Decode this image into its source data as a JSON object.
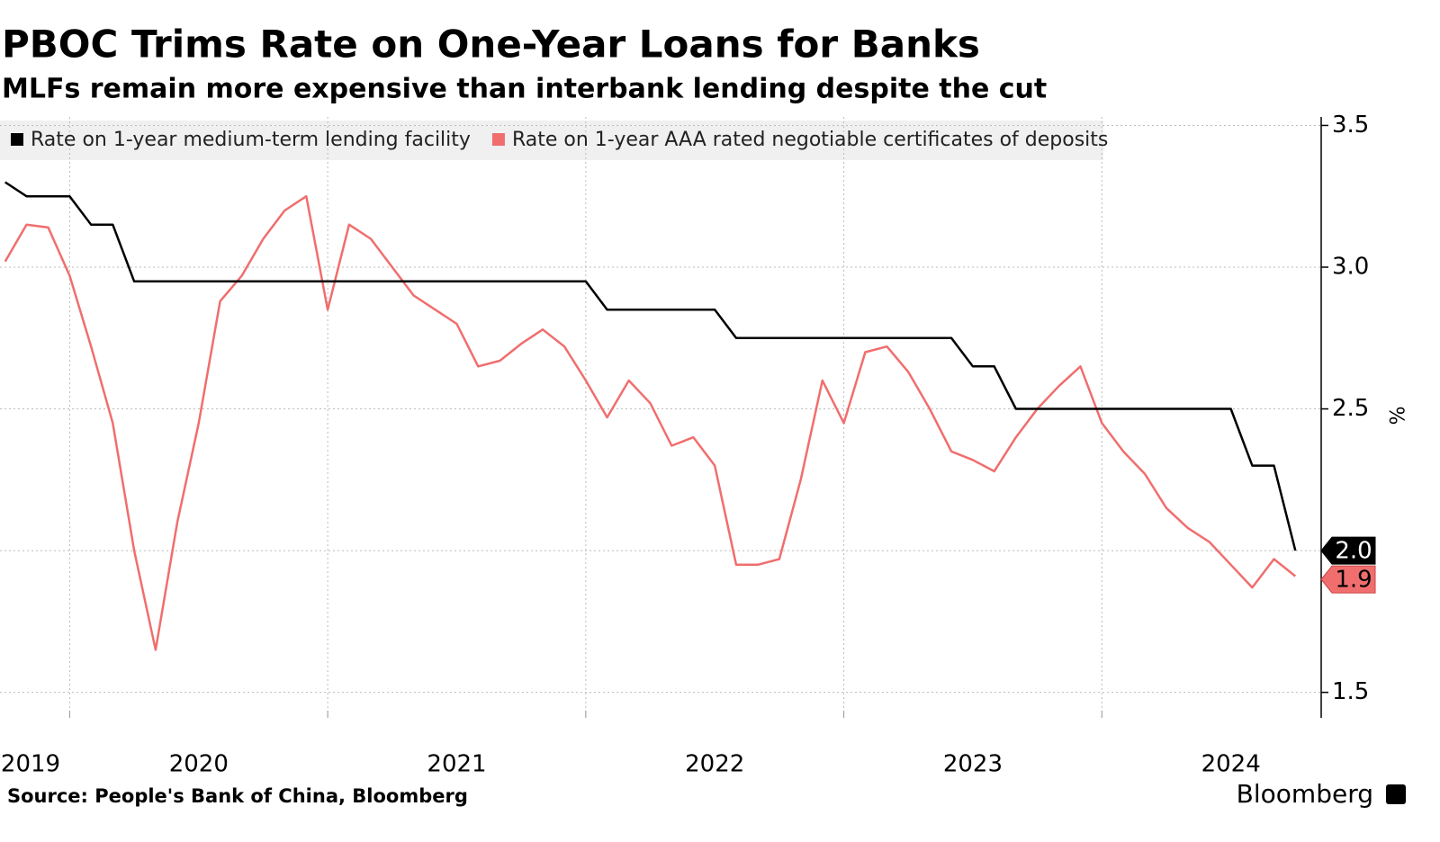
{
  "chart_data": {
    "type": "line",
    "title": "PBOC Trims Rate on One-Year Loans for Banks",
    "subtitle": "MLFs remain more expensive than interbank lending despite the cut",
    "y_label": "%",
    "source": "Source: People's Bank of China, Bloomberg",
    "brand": "Bloomberg",
    "x": [
      2019.75,
      2019.833,
      2019.917,
      2020,
      2020.083,
      2020.167,
      2020.25,
      2020.333,
      2020.417,
      2020.5,
      2020.583,
      2020.667,
      2020.75,
      2020.833,
      2020.917,
      2021,
      2021.083,
      2021.167,
      2021.25,
      2021.333,
      2021.417,
      2021.5,
      2021.583,
      2021.667,
      2021.75,
      2021.833,
      2021.917,
      2022,
      2022.083,
      2022.167,
      2022.25,
      2022.333,
      2022.417,
      2022.5,
      2022.583,
      2022.667,
      2022.75,
      2022.833,
      2022.917,
      2023,
      2023.083,
      2023.167,
      2023.25,
      2023.333,
      2023.417,
      2023.5,
      2023.583,
      2023.667,
      2023.75,
      2023.833,
      2023.917,
      2024,
      2024.083,
      2024.167,
      2024.25,
      2024.333,
      2024.417,
      2024.5,
      2024.583,
      2024.667,
      2024.75
    ],
    "series": [
      {
        "name": "Rate on 1-year medium-term lending facility",
        "color": "#000000",
        "values": [
          3.3,
          3.25,
          3.25,
          3.25,
          3.15,
          3.15,
          2.95,
          2.95,
          2.95,
          2.95,
          2.95,
          2.95,
          2.95,
          2.95,
          2.95,
          2.95,
          2.95,
          2.95,
          2.95,
          2.95,
          2.95,
          2.95,
          2.95,
          2.95,
          2.95,
          2.95,
          2.95,
          2.95,
          2.85,
          2.85,
          2.85,
          2.85,
          2.85,
          2.85,
          2.75,
          2.75,
          2.75,
          2.75,
          2.75,
          2.75,
          2.75,
          2.75,
          2.75,
          2.75,
          2.75,
          2.65,
          2.65,
          2.5,
          2.5,
          2.5,
          2.5,
          2.5,
          2.5,
          2.5,
          2.5,
          2.5,
          2.5,
          2.5,
          2.3,
          2.3,
          2.0
        ],
        "value_labels": [
          null,
          null,
          null,
          null,
          null,
          null,
          null,
          null,
          null,
          null,
          null,
          null,
          null,
          null,
          null,
          null,
          null,
          null,
          null,
          null,
          null,
          null,
          null,
          null,
          null,
          null,
          null,
          null,
          null,
          null,
          null,
          null,
          null,
          null,
          null,
          null,
          null,
          null,
          null,
          null,
          null,
          null,
          null,
          null,
          null,
          null,
          null,
          null,
          null,
          null,
          null,
          null,
          null,
          null,
          null,
          null,
          null,
          null,
          null,
          null,
          "2.0"
        ]
      },
      {
        "name": "Rate on 1-year AAA rated negotiable certificates of deposits",
        "color": "#f06e6e",
        "values": [
          3.02,
          3.15,
          3.14,
          2.97,
          2.72,
          2.45,
          2.0,
          1.65,
          2.1,
          2.45,
          2.88,
          2.97,
          3.1,
          3.2,
          3.25,
          2.85,
          3.15,
          3.1,
          3.0,
          2.9,
          2.85,
          2.8,
          2.65,
          2.67,
          2.73,
          2.78,
          2.72,
          2.6,
          2.47,
          2.6,
          2.52,
          2.37,
          2.4,
          2.3,
          1.95,
          1.95,
          1.97,
          2.25,
          2.6,
          2.45,
          2.7,
          2.72,
          2.63,
          2.5,
          2.35,
          2.32,
          2.28,
          2.4,
          2.5,
          2.58,
          2.65,
          2.45,
          2.35,
          2.27,
          2.15,
          2.08,
          2.03,
          1.95,
          1.87,
          1.97,
          1.91
        ],
        "value_labels": [
          null,
          null,
          null,
          null,
          null,
          null,
          null,
          null,
          null,
          null,
          null,
          null,
          null,
          null,
          null,
          null,
          null,
          null,
          null,
          null,
          null,
          null,
          null,
          null,
          null,
          null,
          null,
          null,
          null,
          null,
          null,
          null,
          null,
          null,
          null,
          null,
          null,
          null,
          null,
          null,
          null,
          null,
          null,
          null,
          null,
          null,
          null,
          null,
          null,
          null,
          null,
          null,
          null,
          null,
          null,
          null,
          null,
          null,
          null,
          null,
          "1.9"
        ]
      }
    ],
    "xlim": [
      2019.73,
      2024.85
    ],
    "xticks": [
      2019,
      2020,
      2021,
      2022,
      2023,
      2024
    ],
    "ylim": [
      1.41,
      3.53
    ],
    "yticks": [
      1.5,
      {
        "value": 2,
        "label": "2.0"
      },
      2.5,
      {
        "value": 3,
        "label": "3.0"
      },
      3.5
    ],
    "grid": true
  }
}
